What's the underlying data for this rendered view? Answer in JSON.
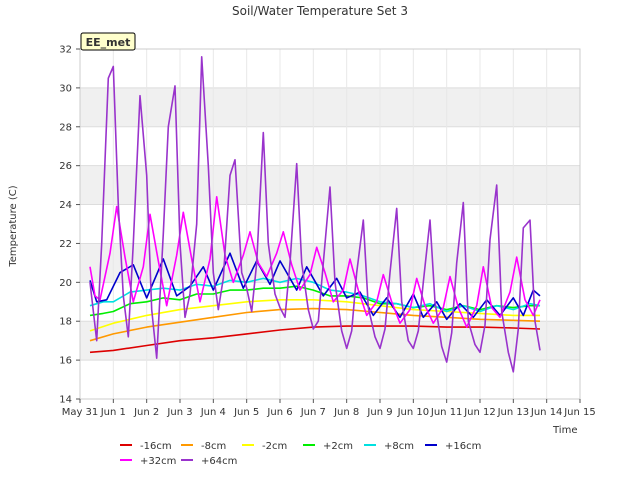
{
  "chart_data": {
    "type": "line",
    "title": "Soil/Water Temperature Set 3",
    "xlabel": "Time",
    "ylabel": "Temperature (C)",
    "site_label": "EE_met",
    "xlim": [
      0,
      15
    ],
    "ylim": [
      14,
      32
    ],
    "xticks": [
      {
        "v": 0,
        "label": "May 31"
      },
      {
        "v": 1,
        "label": "Jun 1"
      },
      {
        "v": 2,
        "label": "Jun 2"
      },
      {
        "v": 3,
        "label": "Jun 3"
      },
      {
        "v": 4,
        "label": "Jun 4"
      },
      {
        "v": 5,
        "label": "Jun 5"
      },
      {
        "v": 6,
        "label": "Jun 6"
      },
      {
        "v": 7,
        "label": "Jun 7"
      },
      {
        "v": 8,
        "label": "Jun 8"
      },
      {
        "v": 9,
        "label": "Jun 9"
      },
      {
        "v": 10,
        "label": "Jun 10"
      },
      {
        "v": 11,
        "label": "Jun 11"
      },
      {
        "v": 12,
        "label": "Jun 12"
      },
      {
        "v": 13,
        "label": "Jun 13"
      },
      {
        "v": 14,
        "label": "Jun 14"
      },
      {
        "v": 15,
        "label": "Jun 15"
      }
    ],
    "yticks": [
      14,
      16,
      18,
      20,
      22,
      24,
      26,
      28,
      30,
      32
    ],
    "grid": true,
    "legend_position": "bottom",
    "series": [
      {
        "name": "-16cm",
        "color": "#dd0000",
        "x": [
          0.3,
          1,
          2,
          3,
          4,
          5,
          6,
          7,
          8,
          9,
          10,
          11,
          12,
          13,
          13.8
        ],
        "y": [
          16.4,
          16.5,
          16.75,
          17.0,
          17.15,
          17.35,
          17.55,
          17.7,
          17.75,
          17.75,
          17.75,
          17.7,
          17.7,
          17.65,
          17.6
        ]
      },
      {
        "name": "-8cm",
        "color": "#ff9900",
        "x": [
          0.3,
          1,
          2,
          3,
          4,
          5,
          6,
          7,
          8,
          9,
          10,
          11,
          12,
          13,
          13.8
        ],
        "y": [
          17.0,
          17.35,
          17.7,
          17.95,
          18.2,
          18.45,
          18.6,
          18.65,
          18.6,
          18.45,
          18.3,
          18.2,
          18.1,
          18.05,
          18.0
        ]
      },
      {
        "name": "-2cm",
        "color": "#ffff00",
        "x": [
          0.3,
          1,
          2,
          3,
          4,
          5,
          6,
          7,
          8,
          9,
          10,
          11,
          12,
          13,
          13.8
        ],
        "y": [
          17.5,
          17.9,
          18.3,
          18.6,
          18.8,
          19.0,
          19.1,
          19.1,
          19.0,
          18.8,
          18.6,
          18.5,
          18.4,
          18.3,
          18.3
        ]
      },
      {
        "name": "+2cm",
        "color": "#00ee00",
        "x": [
          0.3,
          0.7,
          1,
          1.5,
          2,
          2.5,
          3,
          3.5,
          4,
          4.5,
          5,
          5.5,
          6,
          6.5,
          7,
          7.5,
          8,
          8.5,
          9,
          9.5,
          10,
          10.5,
          11,
          11.5,
          12,
          12.5,
          13,
          13.5,
          13.8
        ],
        "y": [
          18.3,
          18.4,
          18.5,
          18.9,
          19.0,
          19.2,
          19.1,
          19.4,
          19.4,
          19.6,
          19.6,
          19.7,
          19.7,
          19.8,
          19.6,
          19.3,
          19.3,
          19.2,
          18.9,
          18.9,
          18.7,
          18.8,
          18.6,
          18.8,
          18.6,
          18.8,
          18.7,
          18.8,
          18.8
        ]
      },
      {
        "name": "+8cm",
        "color": "#00e0e0",
        "x": [
          0.3,
          0.7,
          1,
          1.5,
          2,
          2.5,
          3,
          3.5,
          4,
          4.5,
          5,
          5.5,
          6,
          6.5,
          7,
          7.5,
          8,
          8.5,
          9,
          9.5,
          10,
          10.5,
          11,
          11.5,
          12,
          12.5,
          13,
          13.5,
          13.8
        ],
        "y": [
          18.8,
          19.0,
          19.0,
          19.5,
          19.6,
          19.7,
          19.6,
          19.9,
          19.8,
          20.1,
          20.0,
          20.2,
          20.0,
          20.2,
          20.0,
          19.6,
          19.5,
          19.3,
          19.0,
          18.9,
          18.7,
          18.9,
          18.5,
          18.8,
          18.5,
          18.8,
          18.6,
          18.9,
          18.8
        ]
      },
      {
        "name": "+16cm",
        "color": "#0000cc",
        "x": [
          0.3,
          0.5,
          0.8,
          1.2,
          1.6,
          2.0,
          2.5,
          2.9,
          3.3,
          3.7,
          4.0,
          4.5,
          4.9,
          5.3,
          5.7,
          6.0,
          6.5,
          6.8,
          7.3,
          7.7,
          8.0,
          8.4,
          8.8,
          9.2,
          9.6,
          10.0,
          10.3,
          10.7,
          11.0,
          11.4,
          11.8,
          12.2,
          12.6,
          13.0,
          13.3,
          13.6,
          13.8
        ],
        "y": [
          20.1,
          19.0,
          19.1,
          20.5,
          20.9,
          19.2,
          21.2,
          19.3,
          19.8,
          20.8,
          19.6,
          21.5,
          19.7,
          21.1,
          19.9,
          21.1,
          19.6,
          20.8,
          19.3,
          20.2,
          19.2,
          19.5,
          18.3,
          19.2,
          18.2,
          19.4,
          18.2,
          19.0,
          18.1,
          18.9,
          18.2,
          19.1,
          18.3,
          19.2,
          18.3,
          19.6,
          19.3
        ]
      },
      {
        "name": "+32cm",
        "color": "#ff00ff",
        "x": [
          0.3,
          0.45,
          0.6,
          0.9,
          1.1,
          1.35,
          1.6,
          1.9,
          2.1,
          2.35,
          2.6,
          2.9,
          3.1,
          3.35,
          3.6,
          3.9,
          4.1,
          4.35,
          4.6,
          4.9,
          5.1,
          5.35,
          5.6,
          5.9,
          6.1,
          6.35,
          6.6,
          6.9,
          7.1,
          7.35,
          7.6,
          7.9,
          8.1,
          8.35,
          8.6,
          8.9,
          9.1,
          9.35,
          9.6,
          9.9,
          10.1,
          10.35,
          10.6,
          10.9,
          11.1,
          11.35,
          11.6,
          11.9,
          12.1,
          12.35,
          12.6,
          12.9,
          13.1,
          13.35,
          13.6,
          13.8
        ],
        "y": [
          20.8,
          19.3,
          19.1,
          21.5,
          23.9,
          21.3,
          19.0,
          20.8,
          23.5,
          21.1,
          18.8,
          21.4,
          23.6,
          21.2,
          19.0,
          21.2,
          24.4,
          21.4,
          20.0,
          21.4,
          22.6,
          21.0,
          20.3,
          21.5,
          22.6,
          20.9,
          19.6,
          20.4,
          21.8,
          20.5,
          19.0,
          19.6,
          21.2,
          19.6,
          18.3,
          19.0,
          20.4,
          19.0,
          17.9,
          18.6,
          20.2,
          18.8,
          17.9,
          18.7,
          20.3,
          18.7,
          17.7,
          18.8,
          20.8,
          18.7,
          18.2,
          19.5,
          21.3,
          19.1,
          18.3,
          19.1
        ]
      },
      {
        "name": "+64cm",
        "color": "#9933cc",
        "x": [
          0.3,
          0.5,
          0.65,
          0.85,
          1.0,
          1.15,
          1.3,
          1.45,
          1.6,
          1.8,
          2.0,
          2.15,
          2.3,
          2.5,
          2.65,
          2.85,
          3.0,
          3.15,
          3.3,
          3.5,
          3.65,
          3.85,
          4.0,
          4.15,
          4.3,
          4.5,
          4.65,
          4.85,
          5.0,
          5.15,
          5.3,
          5.5,
          5.65,
          5.85,
          6.0,
          6.15,
          6.3,
          6.5,
          6.65,
          6.85,
          7.0,
          7.15,
          7.3,
          7.5,
          7.65,
          7.85,
          8.0,
          8.15,
          8.3,
          8.5,
          8.65,
          8.85,
          9.0,
          9.15,
          9.3,
          9.5,
          9.65,
          9.85,
          10.0,
          10.15,
          10.3,
          10.5,
          10.65,
          10.85,
          11.0,
          11.15,
          11.3,
          11.5,
          11.65,
          11.85,
          12.0,
          12.15,
          12.3,
          12.5,
          12.65,
          12.85,
          13.0,
          13.15,
          13.3,
          13.5,
          13.65,
          13.8
        ],
        "y": [
          20.0,
          17.0,
          22.0,
          30.5,
          31.1,
          24.0,
          19.3,
          17.2,
          22.0,
          29.6,
          25.5,
          18.6,
          16.1,
          22.5,
          28.0,
          30.1,
          22.0,
          18.2,
          19.4,
          23.0,
          31.6,
          26.0,
          20.5,
          18.6,
          20.2,
          25.5,
          26.3,
          20.5,
          19.7,
          18.5,
          21.0,
          27.7,
          22.0,
          19.4,
          18.7,
          18.2,
          21.0,
          26.1,
          21.0,
          18.6,
          17.6,
          18.0,
          21.0,
          24.9,
          20.0,
          17.5,
          16.6,
          17.5,
          20.5,
          23.2,
          18.7,
          17.2,
          16.6,
          17.6,
          20.5,
          23.8,
          19.0,
          17.0,
          16.6,
          17.5,
          20.0,
          23.2,
          19.0,
          16.7,
          15.9,
          17.4,
          21.0,
          24.1,
          18.0,
          16.8,
          16.4,
          17.8,
          22.2,
          25.0,
          18.5,
          16.4,
          15.4,
          17.6,
          22.8,
          23.2,
          18.0,
          16.5
        ]
      }
    ]
  }
}
